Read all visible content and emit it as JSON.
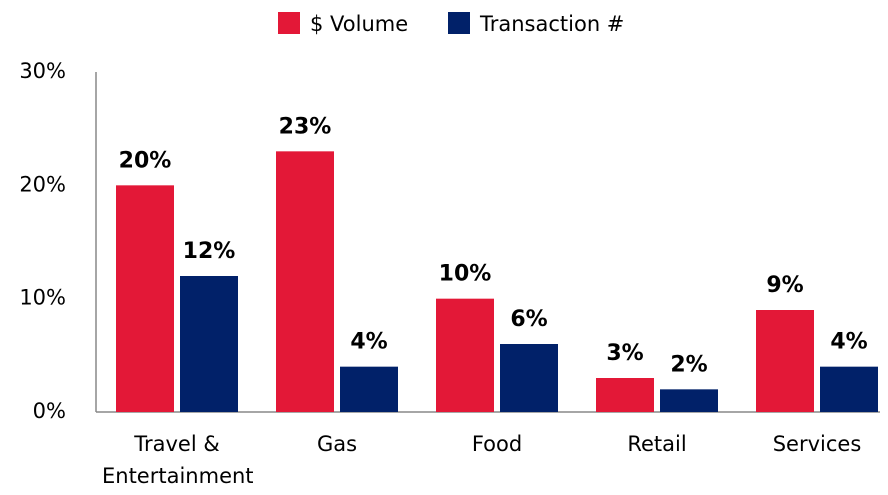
{
  "chart_data": {
    "type": "bar",
    "categories": [
      "Travel & Entertainment",
      "Gas",
      "Food",
      "Retail",
      "Services"
    ],
    "series": [
      {
        "name": "$ Volume",
        "color": "#e31837",
        "values": [
          20,
          23,
          10,
          3,
          9
        ],
        "value_labels": [
          "20%",
          "23%",
          "10%",
          "3%",
          "9%"
        ]
      },
      {
        "name": "Transaction #",
        "color": "#012169",
        "values": [
          12,
          4,
          6,
          2,
          4
        ],
        "value_labels": [
          "12%",
          "4%",
          "6%",
          "2%",
          "4%"
        ]
      }
    ],
    "ylim": [
      0,
      30
    ],
    "yticks": [
      {
        "value": 0,
        "label": "0%"
      },
      {
        "value": 10,
        "label": "10%"
      },
      {
        "value": 20,
        "label": "20%"
      },
      {
        "value": 30,
        "label": "30%"
      }
    ],
    "grid": false,
    "legend": "top"
  }
}
